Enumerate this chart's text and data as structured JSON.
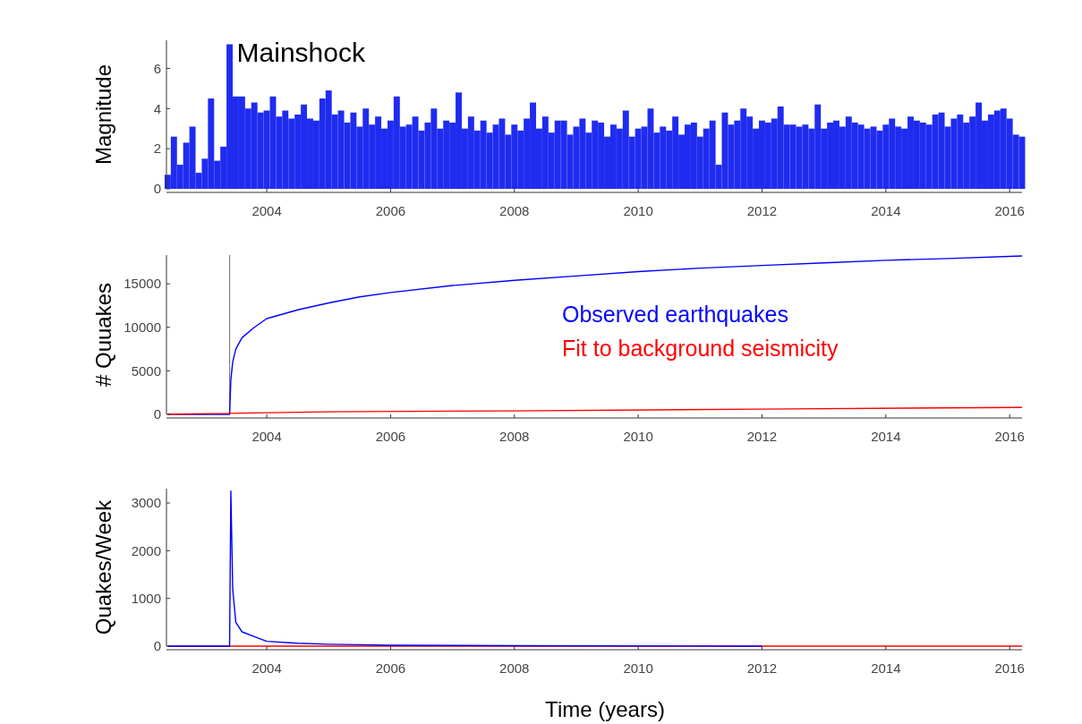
{
  "chart_data": [
    {
      "type": "bar",
      "ylabel": "Magnitude",
      "xlim": [
        2002.38,
        2016.2
      ],
      "ylim": [
        0,
        7.4
      ],
      "xticks": [
        2004,
        2006,
        2008,
        2010,
        2012,
        2014,
        2016
      ],
      "yticks": [
        0,
        2,
        4,
        6
      ],
      "grid": false,
      "annotations": [
        {
          "text": "Mainshock",
          "x": 2003.4,
          "y": 7.2
        }
      ],
      "series": [
        {
          "color": "#1f2cf0",
          "x": [
            2002.4,
            2002.5,
            2002.6,
            2002.7,
            2002.8,
            2002.9,
            2003.0,
            2003.1,
            2003.2,
            2003.3,
            2003.4,
            2003.5,
            2003.6,
            2003.7,
            2003.8,
            2003.9,
            2004.0,
            2004.1,
            2004.2,
            2004.3,
            2004.4,
            2004.5,
            2004.6,
            2004.7,
            2004.8,
            2004.9,
            2005.0,
            2005.1,
            2005.2,
            2005.3,
            2005.4,
            2005.5,
            2005.6,
            2005.7,
            2005.8,
            2005.9,
            2006.0,
            2006.1,
            2006.2,
            2006.3,
            2006.4,
            2006.5,
            2006.6,
            2006.7,
            2006.8,
            2006.9,
            2007.0,
            2007.1,
            2007.2,
            2007.3,
            2007.4,
            2007.5,
            2007.6,
            2007.7,
            2007.8,
            2007.9,
            2008.0,
            2008.1,
            2008.2,
            2008.3,
            2008.4,
            2008.5,
            2008.6,
            2008.7,
            2008.8,
            2008.9,
            2009.0,
            2009.1,
            2009.2,
            2009.3,
            2009.4,
            2009.5,
            2009.6,
            2009.7,
            2009.8,
            2009.9,
            2010.0,
            2010.1,
            2010.2,
            2010.3,
            2010.4,
            2010.5,
            2010.6,
            2010.7,
            2010.8,
            2010.9,
            2011.0,
            2011.1,
            2011.2,
            2011.3,
            2011.4,
            2011.5,
            2011.6,
            2011.7,
            2011.8,
            2011.9,
            2012.0,
            2012.1,
            2012.2,
            2012.3,
            2012.4,
            2012.5,
            2012.6,
            2012.7,
            2012.8,
            2012.9,
            2013.0,
            2013.1,
            2013.2,
            2013.3,
            2013.4,
            2013.5,
            2013.6,
            2013.7,
            2013.8,
            2013.9,
            2014.0,
            2014.1,
            2014.2,
            2014.3,
            2014.4,
            2014.5,
            2014.6,
            2014.7,
            2014.8,
            2014.9,
            2015.0,
            2015.1,
            2015.2,
            2015.3,
            2015.4,
            2015.5,
            2015.6,
            2015.7,
            2015.8,
            2015.9,
            2016.0,
            2016.1,
            2016.2
          ],
          "values": [
            0.7,
            2.6,
            1.2,
            2.3,
            3.1,
            0.8,
            1.5,
            4.5,
            1.4,
            2.1,
            7.2,
            4.6,
            4.6,
            4.0,
            4.3,
            3.8,
            3.9,
            4.6,
            3.6,
            3.9,
            3.5,
            3.7,
            4.2,
            3.5,
            3.4,
            4.5,
            4.9,
            3.7,
            3.9,
            3.3,
            3.8,
            3.1,
            4.0,
            3.2,
            3.6,
            3.0,
            3.4,
            4.6,
            3.1,
            3.2,
            3.6,
            2.9,
            3.3,
            4.0,
            3.0,
            3.4,
            3.3,
            4.8,
            3.0,
            3.6,
            2.9,
            3.4,
            2.8,
            3.2,
            3.5,
            2.7,
            3.2,
            2.9,
            3.5,
            4.3,
            3.0,
            3.6,
            2.8,
            3.4,
            3.4,
            2.7,
            3.1,
            3.5,
            2.8,
            3.4,
            3.3,
            2.6,
            3.2,
            3.0,
            3.9,
            2.6,
            3.0,
            3.1,
            4.0,
            2.8,
            3.1,
            2.9,
            3.6,
            2.7,
            3.2,
            3.3,
            2.6,
            3.0,
            3.4,
            1.2,
            3.8,
            3.2,
            3.4,
            4.0,
            3.6,
            3.0,
            3.4,
            3.3,
            3.5,
            4.1,
            3.2,
            3.2,
            3.1,
            3.2,
            3.0,
            4.2,
            3.0,
            3.3,
            3.4,
            3.1,
            3.6,
            3.3,
            3.2,
            3.0,
            3.1,
            2.9,
            3.2,
            3.5,
            3.1,
            3.0,
            3.6,
            3.4,
            3.3,
            3.2,
            3.7,
            3.8,
            3.1,
            3.5,
            3.7,
            3.3,
            3.6,
            4.3,
            3.4,
            3.7,
            3.9,
            4.0,
            3.5,
            2.7,
            2.6
          ]
        }
      ]
    },
    {
      "type": "line",
      "ylabel": "# Quuakes",
      "xlim": [
        2002.38,
        2016.2
      ],
      "ylim": [
        0,
        18300
      ],
      "xticks": [
        2004,
        2006,
        2008,
        2010,
        2012,
        2014,
        2016
      ],
      "yticks": [
        0,
        5000,
        10000,
        15000
      ],
      "grid": false,
      "legend": "right",
      "ref_lines": [
        {
          "axis": "x",
          "value": 2003.4,
          "color": "#808080"
        }
      ],
      "series": [
        {
          "name": "Observed earthquakes",
          "color": "#0000ff",
          "x": [
            2002.4,
            2003.4,
            2003.42,
            2003.45,
            2003.5,
            2003.6,
            2003.8,
            2004,
            2004.5,
            2005,
            2005.5,
            2006,
            2007,
            2008,
            2009,
            2010,
            2011,
            2012,
            2013,
            2014,
            2015,
            2016.2
          ],
          "values": [
            0,
            0,
            4000,
            6000,
            7500,
            8800,
            10000,
            11000,
            12000,
            12800,
            13500,
            14000,
            14800,
            15400,
            15900,
            16400,
            16800,
            17100,
            17400,
            17700,
            17900,
            18200
          ]
        },
        {
          "name": "Fit to background seismicity",
          "color": "#ff0000",
          "x": [
            2002.4,
            2005,
            2008,
            2012,
            2016.2
          ],
          "values": [
            0,
            300,
            400,
            600,
            800
          ]
        }
      ]
    },
    {
      "type": "line",
      "ylabel": "Quakes/Week",
      "xlabel": "Time (years)",
      "xlim": [
        2002.38,
        2016.2
      ],
      "ylim": [
        0,
        3300
      ],
      "xticks": [
        2004,
        2006,
        2008,
        2010,
        2012,
        2014,
        2016
      ],
      "yticks": [
        0,
        1000,
        2000,
        3000
      ],
      "grid": false,
      "series": [
        {
          "color": "#ff0000",
          "x": [
            2002.4,
            2016.2
          ],
          "values": [
            0,
            0
          ]
        },
        {
          "color": "#0000ff",
          "x": [
            2002.4,
            2003.4,
            2003.42,
            2003.45,
            2003.5,
            2003.6,
            2003.8,
            2004,
            2004.5,
            2005,
            2005.5,
            2006,
            2008,
            2012
          ],
          "values": [
            0,
            0,
            3250,
            1200,
            500,
            300,
            200,
            100,
            60,
            40,
            30,
            20,
            10,
            0
          ]
        }
      ]
    }
  ]
}
